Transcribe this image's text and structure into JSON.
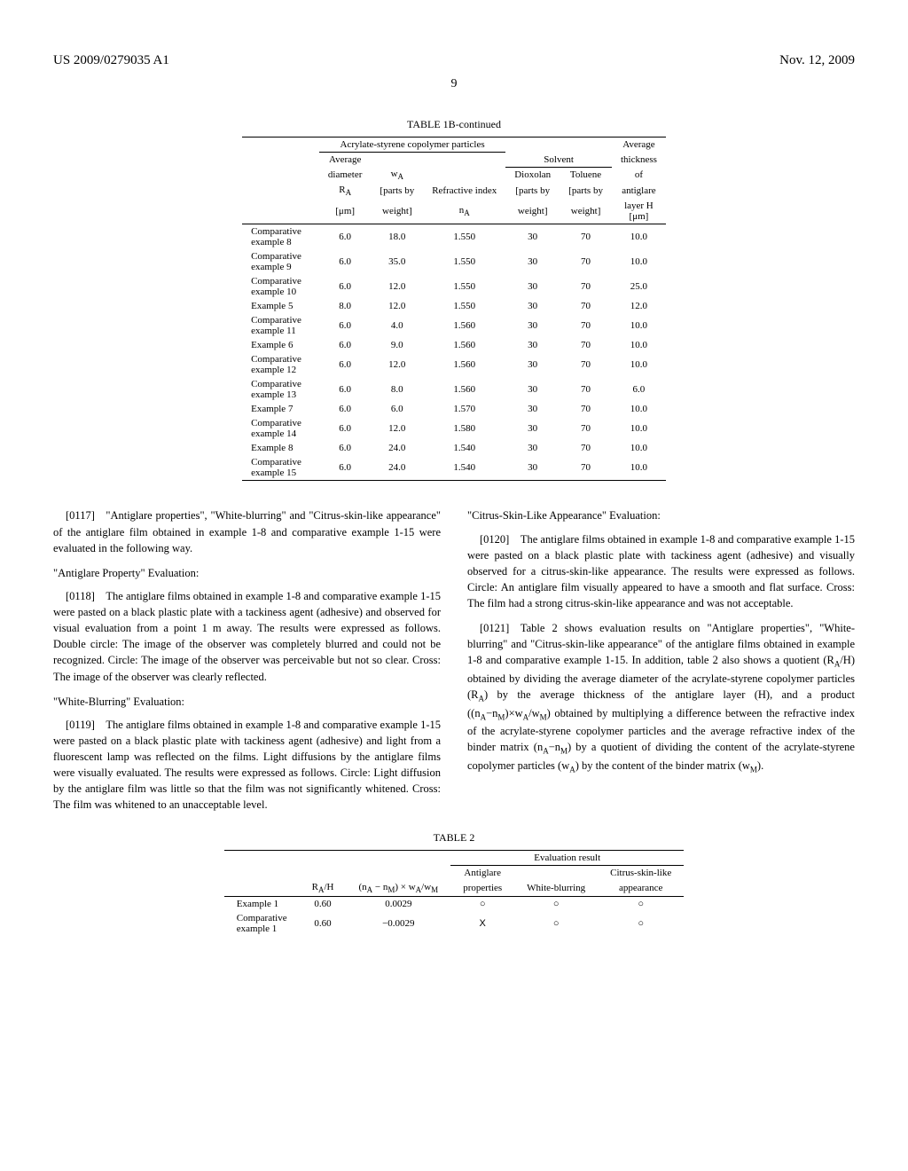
{
  "header": {
    "left": "US 2009/0279035 A1",
    "right": "Nov. 12, 2009"
  },
  "pagenum": "9",
  "table1b": {
    "title": "TABLE 1B-continued",
    "group_header": "Acrylate-styrene copolymer particles",
    "solvent_header": "Solvent",
    "avg_thickness_header_top": "Average",
    "avg_thickness_header_bot": "thickness",
    "of_label": "of",
    "cols": {
      "avg_label": "Average",
      "diameter": "diameter",
      "ra": "R",
      "ra_sub": "A",
      "um": "[μm]",
      "wa": "w",
      "wa_sub": "A",
      "parts": "[parts by",
      "weight": "weight]",
      "ri": "Refractive index",
      "na": "n",
      "na_sub": "A",
      "diox": "Dioxolan",
      "tol": "Toluene",
      "ag": "antiglare",
      "layer": "layer H"
    },
    "rows": [
      {
        "label": "Comparative example 8",
        "d": "6.0",
        "w": "18.0",
        "ri": "1.550",
        "dx": "30",
        "tl": "70",
        "h": "10.0"
      },
      {
        "label": "Comparative example 9",
        "d": "6.0",
        "w": "35.0",
        "ri": "1.550",
        "dx": "30",
        "tl": "70",
        "h": "10.0"
      },
      {
        "label": "Comparative example 10",
        "d": "6.0",
        "w": "12.0",
        "ri": "1.550",
        "dx": "30",
        "tl": "70",
        "h": "25.0"
      },
      {
        "label": "Example 5",
        "d": "8.0",
        "w": "12.0",
        "ri": "1.550",
        "dx": "30",
        "tl": "70",
        "h": "12.0"
      },
      {
        "label": "Comparative example 11",
        "d": "6.0",
        "w": "4.0",
        "ri": "1.560",
        "dx": "30",
        "tl": "70",
        "h": "10.0"
      },
      {
        "label": "Example 6",
        "d": "6.0",
        "w": "9.0",
        "ri": "1.560",
        "dx": "30",
        "tl": "70",
        "h": "10.0"
      },
      {
        "label": "Comparative example 12",
        "d": "6.0",
        "w": "12.0",
        "ri": "1.560",
        "dx": "30",
        "tl": "70",
        "h": "10.0"
      },
      {
        "label": "Comparative example 13",
        "d": "6.0",
        "w": "8.0",
        "ri": "1.560",
        "dx": "30",
        "tl": "70",
        "h": "6.0"
      },
      {
        "label": "Example 7",
        "d": "6.0",
        "w": "6.0",
        "ri": "1.570",
        "dx": "30",
        "tl": "70",
        "h": "10.0"
      },
      {
        "label": "Comparative example 14",
        "d": "6.0",
        "w": "12.0",
        "ri": "1.580",
        "dx": "30",
        "tl": "70",
        "h": "10.0"
      },
      {
        "label": "Example 8",
        "d": "6.0",
        "w": "24.0",
        "ri": "1.540",
        "dx": "30",
        "tl": "70",
        "h": "10.0"
      },
      {
        "label": "Comparative example 15",
        "d": "6.0",
        "w": "24.0",
        "ri": "1.540",
        "dx": "30",
        "tl": "70",
        "h": "10.0"
      }
    ]
  },
  "body": {
    "p0117": "[0117] \"Antiglare properties\", \"White-blurring\" and \"Citrus-skin-like appearance\" of the antiglare film obtained in example 1-8 and comparative example 1-15 were evaluated in the following way.",
    "h_antiglare": "\"Antiglare Property\" Evaluation:",
    "p0118": "[0118] The antiglare films obtained in example 1-8 and comparative example 1-15 were pasted on a black plastic plate with a tackiness agent (adhesive) and observed for visual evaluation from a point 1 m away. The results were expressed as follows. Double circle: The image of the observer was completely blurred and could not be recognized. Circle: The image of the observer was perceivable but not so clear. Cross: The image of the observer was clearly reflected.",
    "h_white": "\"White-Blurring\" Evaluation:",
    "p0119": "[0119] The antiglare films obtained in example 1-8 and comparative example 1-15 were pasted on a black plastic plate with tackiness agent (adhesive) and light from a fluorescent lamp was reflected on the films. Light diffusions by the antiglare films were visually evaluated. The results were expressed as follows. Circle: Light diffusion by the antiglare film was little so that the film was not significantly whitened. Cross: The film was whitened to an unacceptable level.",
    "h_citrus": "\"Citrus-Skin-Like Appearance\" Evaluation:",
    "p0120": "[0120] The antiglare films obtained in example 1-8 and comparative example 1-15 were pasted on a black plastic plate with tackiness agent (adhesive) and visually observed for a citrus-skin-like appearance. The results were expressed as follows. Circle: An antiglare film visually appeared to have a smooth and flat surface. Cross: The film had a strong citrus-skin-like appearance and was not acceptable.",
    "p0121a": "[0121] Table 2 shows evaluation results on \"Antiglare properties\", \"White-blurring\" and \"Citrus-skin-like appearance\" of the antiglare films obtained in example 1-8 and comparative example 1-15. In addition, table 2 also shows a quotient (R",
    "p0121b": "/H) obtained by dividing the average diameter of the acrylate-styrene copolymer particles (R",
    "p0121c": ") by the average thickness of the antiglare layer (H), and a product ((n",
    "p0121d": "−n",
    "p0121e": ")×w",
    "p0121f": "/w",
    "p0121g": ") obtained by multiplying a difference between the refractive index of the acrylate-styrene copolymer particles and the average refractive index of the binder matrix (n",
    "p0121h": "−n",
    "p0121i": ") by a quotient of dividing the content of the acrylate-styrene copolymer particles (w",
    "p0121j": ") by the content of the binder matrix (w",
    "p0121k": ")."
  },
  "table2": {
    "title": "TABLE 2",
    "eval_header": "Evaluation result",
    "cols": {
      "rah": "R",
      "rah_sub": "A",
      "rah_after": "/H",
      "formula_a": "(n",
      "formula_b": " − n",
      "formula_c": ") × w",
      "formula_d": "/w",
      "antiglare1": "Antiglare",
      "antiglare2": "properties",
      "white": "White-blurring",
      "citrus1": "Citrus-skin-like",
      "citrus2": "appearance"
    },
    "rows": [
      {
        "label": "Example 1",
        "rah": "0.60",
        "prod": "0.0029",
        "ag": "○",
        "wb": "○",
        "cs": "○"
      },
      {
        "label": "Comparative example 1",
        "rah": "0.60",
        "prod": "−0.0029",
        "ag": "X",
        "wb": "○",
        "cs": "○"
      }
    ]
  }
}
